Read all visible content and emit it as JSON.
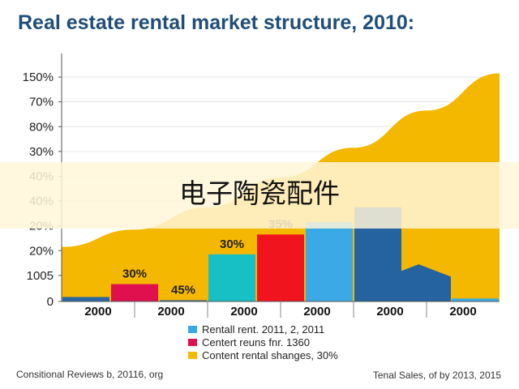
{
  "chart_data": {
    "type": "bar",
    "title": "Real estate rental market structure, 2010:",
    "y_tick_labels": [
      "0",
      "1005",
      "20%",
      "20%",
      "40%",
      "40%",
      "30%",
      "80%",
      "70%",
      "150%"
    ],
    "x_tick_labels": [
      "2000",
      "2000",
      "2000",
      "2000",
      "2000",
      "2000"
    ],
    "area_series": {
      "name": "Content rental shanges, 30%",
      "x": [
        0,
        1,
        2,
        3,
        4,
        5,
        6
      ],
      "values": [
        2.2,
        2.9,
        3.8,
        5.0,
        6.2,
        7.7,
        9.2
      ]
    },
    "bars": [
      {
        "category": "seg1",
        "value": 0.18,
        "color": "#2a66a3"
      },
      {
        "category": "seg2",
        "value": 0.7,
        "color": "#e0104e",
        "label": "30%"
      },
      {
        "category": "seg3",
        "value": 0.05,
        "color": "#2a66a3",
        "label": "45%"
      },
      {
        "category": "seg4",
        "value": 1.9,
        "color": "#17c0c4",
        "label": "30%"
      },
      {
        "category": "seg5",
        "value": 2.7,
        "color": "#f0141e",
        "label": "35%"
      },
      {
        "category": "seg6",
        "value": 3.2,
        "color": "#3aa9e6"
      },
      {
        "category": "seg7",
        "value": 3.8,
        "color": "#2462a0"
      },
      {
        "category": "seg8",
        "value": 0.08,
        "color": "#e0104e"
      },
      {
        "category": "seg9",
        "value": 0.12,
        "color": "#3aa9e6"
      }
    ],
    "dark_region_profile": [
      3.8,
      1.0,
      1.5,
      1.0
    ],
    "legend": [
      {
        "label": "Rentall rent. 2011, 2, 2011",
        "color": "#38a8e6"
      },
      {
        "label": "Centert reuns fnr. 1360",
        "color": "#e0104e"
      },
      {
        "label": "Content rental shanges, 30%",
        "color": "#f5b800"
      }
    ],
    "ylim": [
      0,
      10
    ]
  },
  "overlay_text": "电子陶瓷配件",
  "footer": {
    "left": "Consitional Reviews b, 20116, org",
    "right": "Tenal Sales, of by 2013, 2015"
  },
  "colors": {
    "title": "#1f4e79",
    "area": "#f5b800",
    "overlay_band": "#fff6d8"
  }
}
